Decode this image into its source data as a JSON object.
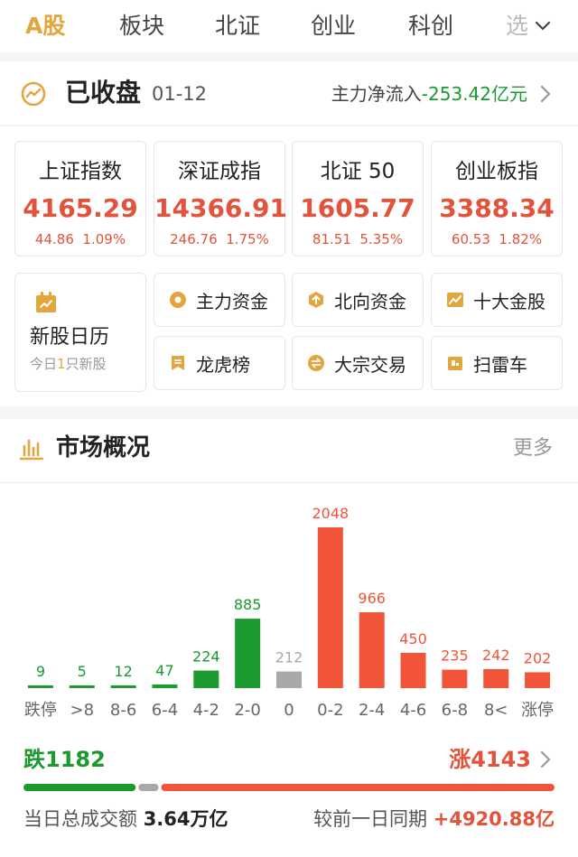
{
  "tabs": {
    "items": [
      "A股",
      "板块",
      "北证",
      "创业",
      "科创"
    ],
    "partial": "选"
  },
  "status": {
    "title": "已收盘",
    "date": "01-12",
    "netflow_label": "主力净流入",
    "netflow_value": "-253.42亿元"
  },
  "indices": [
    {
      "name": "上证指数",
      "value": "4165.29",
      "change": "44.86",
      "pct": "1.09%"
    },
    {
      "name": "深证成指",
      "value": "14366.91",
      "change": "246.76",
      "pct": "1.75%"
    },
    {
      "name": "北证 50",
      "value": "1605.77",
      "change": "81.51",
      "pct": "5.35%"
    },
    {
      "name": "创业板指",
      "value": "3388.34",
      "change": "60.53",
      "pct": "1.82%"
    }
  ],
  "ipo": {
    "label": "新股日历",
    "sub_prefix": "今日",
    "sub_count": "1",
    "sub_suffix": "只新股"
  },
  "shortcuts": [
    {
      "label": "主力资金",
      "icon": "capital-flow-icon"
    },
    {
      "label": "北向资金",
      "icon": "northbound-icon"
    },
    {
      "label": "十大金股",
      "icon": "top-stocks-icon"
    },
    {
      "label": "龙虎榜",
      "icon": "dragon-tiger-icon"
    },
    {
      "label": "大宗交易",
      "icon": "block-trade-icon"
    },
    {
      "label": "扫雷车",
      "icon": "minesweeper-icon"
    }
  ],
  "market": {
    "title": "市场概况",
    "more": "更多",
    "fall_label": "跌",
    "fall_count": "1182",
    "rise_label": "涨",
    "rise_count": "4143",
    "turnover_label": "当日总成交额",
    "turnover_value": "3.64万亿",
    "compare_label": "较前一日同期",
    "compare_value": "+4920.88亿"
  },
  "chart_data": {
    "type": "bar",
    "categories": [
      "跌停",
      ">8",
      "8-6",
      "6-4",
      "4-2",
      "2-0",
      "0",
      "0-2",
      "2-4",
      "4-6",
      "6-8",
      "8<",
      "涨停"
    ],
    "values": [
      9,
      5,
      12,
      47,
      224,
      885,
      212,
      2048,
      966,
      450,
      235,
      242,
      202
    ],
    "colors": [
      "#1a9a2f",
      "#1a9a2f",
      "#1a9a2f",
      "#1a9a2f",
      "#1a9a2f",
      "#1a9a2f",
      "#a8a8a8",
      "#f0553a",
      "#f0553a",
      "#f0553a",
      "#f0553a",
      "#f0553a",
      "#f0553a"
    ],
    "ylim": [
      0,
      2048
    ],
    "ratio": {
      "fall": 1182,
      "flat": 212,
      "rise": 4143
    }
  },
  "colors": {
    "accent": "#e3a63c",
    "up": "#e2533b",
    "down": "#1a9a2f",
    "flat": "#a8a8a8"
  }
}
